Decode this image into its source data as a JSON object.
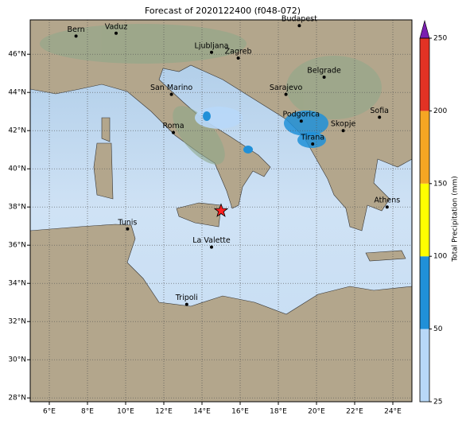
{
  "title": "Forecast of 2020122400 (f048-072)",
  "map": {
    "lonlim": [
      5,
      25
    ],
    "latlim": [
      27.8,
      47.8
    ],
    "xticks": [
      {
        "value": 6,
        "label": "6°E"
      },
      {
        "value": 8,
        "label": "8°E"
      },
      {
        "value": 10,
        "label": "10°E"
      },
      {
        "value": 12,
        "label": "12°E"
      },
      {
        "value": 14,
        "label": "14°E"
      },
      {
        "value": 16,
        "label": "16°E"
      },
      {
        "value": 18,
        "label": "18°E"
      },
      {
        "value": 20,
        "label": "20°E"
      },
      {
        "value": 22,
        "label": "22°E"
      },
      {
        "value": 24,
        "label": "24°E"
      }
    ],
    "yticks": [
      {
        "value": 28,
        "label": "28°N"
      },
      {
        "value": 30,
        "label": "30°N"
      },
      {
        "value": 32,
        "label": "32°N"
      },
      {
        "value": 34,
        "label": "34°N"
      },
      {
        "value": 36,
        "label": "36°N"
      },
      {
        "value": 38,
        "label": "38°N"
      },
      {
        "value": 40,
        "label": "40°N"
      },
      {
        "value": 42,
        "label": "42°N"
      },
      {
        "value": 44,
        "label": "44°N"
      },
      {
        "value": 46,
        "label": "46°N"
      }
    ],
    "cities": [
      {
        "name": "Bern",
        "lon": 7.4,
        "lat": 46.95
      },
      {
        "name": "Vaduz",
        "lon": 9.5,
        "lat": 47.1
      },
      {
        "name": "Budapest",
        "lon": 19.1,
        "lat": 47.5
      },
      {
        "name": "Ljubljana",
        "lon": 14.5,
        "lat": 46.1
      },
      {
        "name": "Zagreb",
        "lon": 15.9,
        "lat": 45.8
      },
      {
        "name": "Belgrade",
        "lon": 20.4,
        "lat": 44.8
      },
      {
        "name": "San Marino",
        "lon": 12.4,
        "lat": 43.9
      },
      {
        "name": "Sarajevo",
        "lon": 18.4,
        "lat": 43.9
      },
      {
        "name": "Podgorica",
        "lon": 19.2,
        "lat": 42.5
      },
      {
        "name": "Sofia",
        "lon": 23.3,
        "lat": 42.7
      },
      {
        "name": "Roma",
        "lon": 12.5,
        "lat": 41.9
      },
      {
        "name": "Skopje",
        "lon": 21.4,
        "lat": 42.0
      },
      {
        "name": "Tirana",
        "lon": 19.8,
        "lat": 41.3
      },
      {
        "name": "Athens",
        "lon": 23.7,
        "lat": 38.0
      },
      {
        "name": "Tunis",
        "lon": 10.1,
        "lat": 36.85
      },
      {
        "name": "La Valette",
        "lon": 14.5,
        "lat": 35.9
      },
      {
        "name": "Tripoli",
        "lon": 13.2,
        "lat": 32.9
      }
    ],
    "star": {
      "lon": 15.0,
      "lat": 37.8,
      "color": "#ff2020"
    }
  },
  "colorbar": {
    "label": "Total Precipitation (mm)",
    "ticks": [
      25,
      50,
      100,
      150,
      200,
      250
    ],
    "colors": [
      "#b8d8f8",
      "#2090d8",
      "#ffff00",
      "#f5a623",
      "#e23224"
    ],
    "extend_color": "#7a1fb0"
  }
}
